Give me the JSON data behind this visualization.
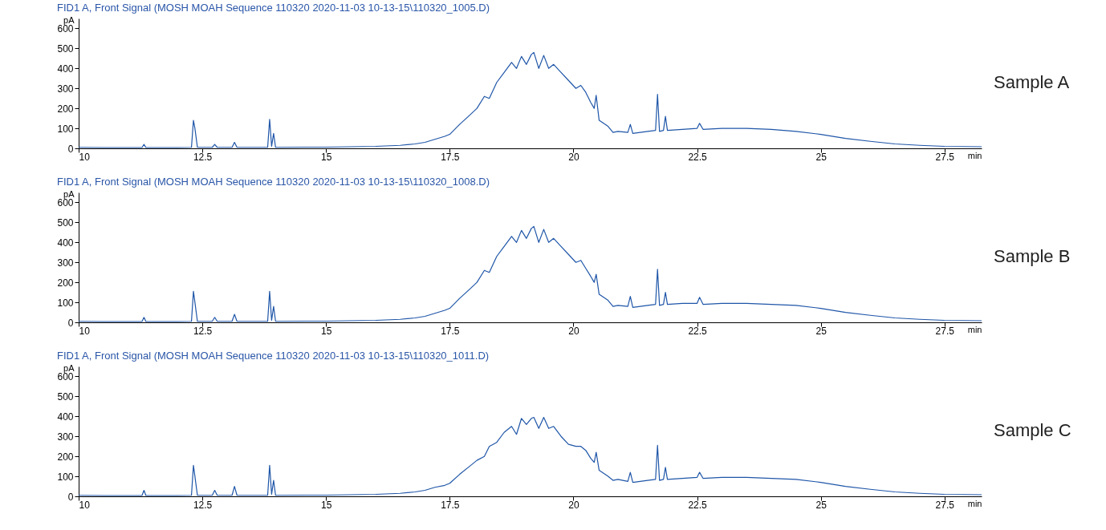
{
  "chart_data": [
    {
      "type": "line",
      "title": "FID1 A, Front Signal (MOSH MOAH Sequence 110320 2020-11-03 10-13-15\\110320_1005.D)",
      "xlabel": "min",
      "ylabel": "pA",
      "annotations": [
        "Sample A"
      ],
      "xlim": [
        10,
        28.25
      ],
      "ylim": [
        0,
        650
      ],
      "xticks": [
        10,
        12.5,
        15,
        17.5,
        20,
        22.5,
        25,
        27.5
      ],
      "yticks": [
        0,
        100,
        200,
        300,
        400,
        500,
        600
      ],
      "grid": false,
      "x": [
        10,
        10.5,
        11,
        11.28,
        11.32,
        11.36,
        12,
        12.28,
        12.32,
        12.35,
        12.4,
        12.7,
        12.75,
        12.8,
        13.1,
        13.15,
        13.2,
        13.5,
        13.82,
        13.86,
        13.9,
        13.94,
        13.98,
        14.6,
        15,
        15.5,
        16,
        16.5,
        16.8,
        17,
        17.2,
        17.4,
        17.5,
        17.7,
        17.9,
        18.05,
        18.2,
        18.3,
        18.45,
        18.6,
        18.75,
        18.85,
        18.95,
        19.05,
        19.15,
        19.2,
        19.3,
        19.4,
        19.5,
        19.6,
        19.75,
        19.9,
        20.05,
        20.15,
        20.25,
        20.35,
        20.42,
        20.46,
        20.52,
        20.7,
        20.8,
        20.9,
        21.1,
        21.15,
        21.2,
        21.5,
        21.66,
        21.7,
        21.74,
        21.82,
        21.86,
        21.9,
        22.2,
        22.5,
        22.55,
        22.62,
        23,
        23.5,
        24,
        24.5,
        25,
        25.5,
        26,
        26.5,
        27,
        27.5,
        28.25
      ],
      "series": [
        {
          "color": "#1f56a8",
          "values": [
            5,
            4,
            4,
            4,
            20,
            4,
            4,
            5,
            140,
            100,
            5,
            5,
            20,
            5,
            5,
            30,
            5,
            5,
            5,
            145,
            10,
            75,
            5,
            6,
            6,
            8,
            10,
            15,
            22,
            30,
            45,
            60,
            70,
            120,
            165,
            200,
            260,
            250,
            330,
            380,
            430,
            400,
            460,
            420,
            470,
            480,
            400,
            465,
            400,
            420,
            380,
            340,
            300,
            315,
            280,
            230,
            200,
            265,
            140,
            110,
            80,
            85,
            80,
            120,
            75,
            85,
            90,
            270,
            85,
            90,
            160,
            90,
            95,
            100,
            125,
            95,
            100,
            100,
            95,
            85,
            70,
            50,
            35,
            22,
            15,
            10,
            8
          ]
        }
      ]
    },
    {
      "type": "line",
      "title": "FID1 A, Front Signal (MOSH MOAH Sequence 110320 2020-11-03 10-13-15\\110320_1008.D)",
      "xlabel": "min",
      "ylabel": "pA",
      "annotations": [
        "Sample B"
      ],
      "xlim": [
        10,
        28.25
      ],
      "ylim": [
        0,
        650
      ],
      "xticks": [
        10,
        12.5,
        15,
        17.5,
        20,
        22.5,
        25,
        27.5
      ],
      "yticks": [
        0,
        100,
        200,
        300,
        400,
        500,
        600
      ],
      "grid": false,
      "x": [
        10,
        10.5,
        11,
        11.28,
        11.32,
        11.36,
        12,
        12.28,
        12.32,
        12.35,
        12.4,
        12.7,
        12.75,
        12.8,
        13.1,
        13.15,
        13.2,
        13.5,
        13.82,
        13.86,
        13.9,
        13.94,
        13.98,
        14.6,
        15,
        15.5,
        16,
        16.5,
        16.8,
        17,
        17.2,
        17.4,
        17.5,
        17.7,
        17.9,
        18.05,
        18.2,
        18.3,
        18.45,
        18.6,
        18.75,
        18.85,
        18.95,
        19.05,
        19.15,
        19.2,
        19.3,
        19.4,
        19.5,
        19.6,
        19.75,
        19.9,
        20.05,
        20.15,
        20.25,
        20.35,
        20.42,
        20.46,
        20.52,
        20.7,
        20.8,
        20.9,
        21.1,
        21.15,
        21.2,
        21.5,
        21.66,
        21.7,
        21.74,
        21.82,
        21.86,
        21.9,
        22.2,
        22.5,
        22.55,
        22.62,
        23,
        23.5,
        24,
        24.5,
        25,
        25.5,
        26,
        26.5,
        27,
        27.5,
        28.25
      ],
      "series": [
        {
          "color": "#1f56a8",
          "values": [
            5,
            4,
            4,
            4,
            25,
            4,
            4,
            5,
            155,
            100,
            5,
            5,
            25,
            5,
            5,
            40,
            5,
            5,
            5,
            155,
            10,
            80,
            5,
            6,
            6,
            8,
            10,
            15,
            22,
            30,
            45,
            60,
            70,
            120,
            165,
            200,
            260,
            250,
            330,
            380,
            430,
            400,
            460,
            420,
            470,
            480,
            400,
            465,
            400,
            420,
            380,
            340,
            300,
            310,
            270,
            230,
            200,
            240,
            140,
            110,
            80,
            85,
            80,
            130,
            75,
            85,
            90,
            265,
            85,
            90,
            150,
            90,
            95,
            95,
            125,
            90,
            95,
            95,
            90,
            85,
            70,
            50,
            35,
            22,
            15,
            10,
            8
          ]
        }
      ]
    },
    {
      "type": "line",
      "title": "FID1 A, Front Signal (MOSH MOAH Sequence 110320 2020-11-03 10-13-15\\110320_1011.D)",
      "xlabel": "min",
      "ylabel": "pA",
      "annotations": [
        "Sample C"
      ],
      "xlim": [
        10,
        28.25
      ],
      "ylim": [
        0,
        650
      ],
      "xticks": [
        10,
        12.5,
        15,
        17.5,
        20,
        22.5,
        25,
        27.5
      ],
      "yticks": [
        0,
        100,
        200,
        300,
        400,
        500,
        600
      ],
      "grid": false,
      "x": [
        10,
        10.5,
        11,
        11.28,
        11.32,
        11.36,
        12,
        12.28,
        12.32,
        12.35,
        12.4,
        12.7,
        12.75,
        12.8,
        13.1,
        13.15,
        13.2,
        13.5,
        13.82,
        13.86,
        13.9,
        13.94,
        13.98,
        14.6,
        15,
        15.5,
        16,
        16.5,
        16.8,
        17,
        17.2,
        17.4,
        17.5,
        17.7,
        17.9,
        18.05,
        18.2,
        18.3,
        18.45,
        18.6,
        18.75,
        18.85,
        18.95,
        19.05,
        19.15,
        19.2,
        19.3,
        19.4,
        19.5,
        19.6,
        19.75,
        19.9,
        20.05,
        20.15,
        20.25,
        20.35,
        20.42,
        20.46,
        20.52,
        20.7,
        20.8,
        20.9,
        21.1,
        21.15,
        21.2,
        21.5,
        21.66,
        21.7,
        21.74,
        21.82,
        21.86,
        21.9,
        22.2,
        22.5,
        22.55,
        22.62,
        23,
        23.5,
        24,
        24.5,
        25,
        25.5,
        26,
        26.5,
        27,
        27.5,
        28.25
      ],
      "series": [
        {
          "color": "#1f56a8",
          "values": [
            5,
            4,
            4,
            4,
            30,
            4,
            4,
            5,
            155,
            100,
            5,
            5,
            30,
            5,
            5,
            50,
            5,
            5,
            5,
            155,
            10,
            80,
            5,
            6,
            6,
            8,
            10,
            15,
            22,
            30,
            45,
            55,
            65,
            110,
            150,
            180,
            200,
            250,
            270,
            320,
            350,
            310,
            390,
            360,
            390,
            395,
            340,
            395,
            340,
            350,
            300,
            260,
            250,
            250,
            230,
            190,
            170,
            220,
            130,
            100,
            80,
            85,
            75,
            120,
            70,
            80,
            85,
            255,
            80,
            85,
            145,
            85,
            90,
            95,
            120,
            90,
            95,
            95,
            90,
            85,
            70,
            50,
            35,
            22,
            15,
            10,
            8
          ]
        }
      ]
    }
  ]
}
